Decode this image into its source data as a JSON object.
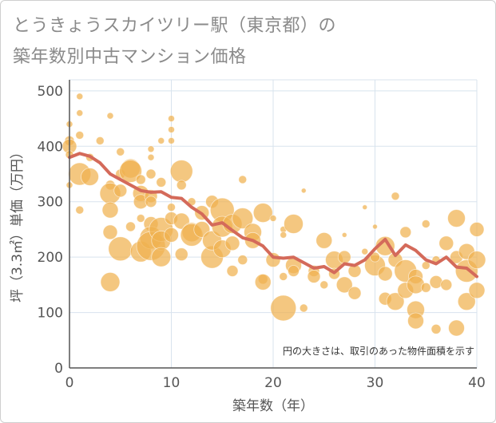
{
  "title_line1": "とうきょうスカイツリー駅（東京都）の",
  "title_line2": "築年数別中古マンション価格",
  "chart_data": {
    "type": "scatter",
    "title": "とうきょうスカイツリー駅（東京都）の 築年数別中古マンション価格",
    "xlabel": "築年数（年）",
    "ylabel": "坪（3.3㎡）単価（万円）",
    "xlim": [
      0,
      40
    ],
    "ylim": [
      0,
      520
    ],
    "xticks": [
      0,
      10,
      20,
      30,
      40
    ],
    "yticks": [
      0,
      100,
      200,
      300,
      400,
      500
    ],
    "grid": true,
    "annotation": "円の大きさは、取引のあった物件面積を示す",
    "colors": {
      "bubble": "#f0b14f",
      "trend": "#d46a5a",
      "grid": "#d8e3ee",
      "axis": "#555555"
    },
    "series": [
      {
        "type": "bubble",
        "points": [
          [
            0,
            410,
            6
          ],
          [
            0,
            400,
            9
          ],
          [
            0,
            385,
            5
          ],
          [
            0,
            330,
            4
          ],
          [
            0,
            440,
            4
          ],
          [
            1,
            490,
            4
          ],
          [
            1,
            460,
            4
          ],
          [
            1,
            350,
            14
          ],
          [
            1,
            285,
            5
          ],
          [
            1,
            420,
            5
          ],
          [
            2,
            345,
            11
          ],
          [
            2,
            380,
            5
          ],
          [
            3,
            410,
            5
          ],
          [
            4,
            455,
            4
          ],
          [
            4,
            330,
            6
          ],
          [
            4,
            315,
            13
          ],
          [
            4,
            285,
            10
          ],
          [
            4,
            245,
            9
          ],
          [
            4,
            155,
            12
          ],
          [
            5,
            390,
            5
          ],
          [
            5,
            350,
            6
          ],
          [
            5,
            320,
            8
          ],
          [
            5,
            215,
            15
          ],
          [
            6,
            360,
            12
          ],
          [
            6,
            355,
            14
          ],
          [
            6,
            255,
            6
          ],
          [
            7,
            340,
            6
          ],
          [
            7,
            315,
            10
          ],
          [
            7,
            300,
            9
          ],
          [
            7,
            210,
            13
          ],
          [
            7,
            270,
            5
          ],
          [
            8,
            395,
            4
          ],
          [
            8,
            380,
            4
          ],
          [
            8,
            350,
            6
          ],
          [
            8,
            310,
            8
          ],
          [
            8,
            300,
            7
          ],
          [
            8,
            260,
            9
          ],
          [
            8,
            235,
            14
          ],
          [
            8,
            220,
            18
          ],
          [
            9,
            410,
            4
          ],
          [
            9,
            335,
            6
          ],
          [
            9,
            250,
            15
          ],
          [
            9,
            230,
            12
          ],
          [
            9,
            200,
            12
          ],
          [
            10,
            450,
            4
          ],
          [
            10,
            430,
            4
          ],
          [
            10,
            410,
            4
          ],
          [
            10,
            290,
            5
          ],
          [
            10,
            270,
            8
          ],
          [
            10,
            240,
            9
          ],
          [
            11,
            355,
            14
          ],
          [
            11,
            330,
            6
          ],
          [
            11,
            265,
            10
          ],
          [
            11,
            205,
            8
          ],
          [
            12,
            245,
            12
          ],
          [
            12,
            240,
            14
          ],
          [
            12,
            300,
            5
          ],
          [
            13,
            280,
            9
          ],
          [
            13,
            250,
            10
          ],
          [
            14,
            200,
            14
          ],
          [
            14,
            230,
            12
          ],
          [
            14,
            300,
            8
          ],
          [
            15,
            285,
            15
          ],
          [
            15,
            255,
            13
          ],
          [
            15,
            215,
            11
          ],
          [
            16,
            260,
            12
          ],
          [
            16,
            175,
            7
          ],
          [
            16,
            225,
            9
          ],
          [
            17,
            340,
            5
          ],
          [
            17,
            270,
            13
          ],
          [
            17,
            195,
            6
          ],
          [
            18,
            245,
            11
          ],
          [
            18,
            230,
            10
          ],
          [
            19,
            280,
            12
          ],
          [
            19,
            160,
            6
          ],
          [
            19,
            155,
            10
          ],
          [
            20,
            270,
            4
          ],
          [
            20,
            195,
            9
          ],
          [
            21,
            250,
            4
          ],
          [
            21,
            240,
            4
          ],
          [
            21,
            165,
            5
          ],
          [
            21,
            108,
            16
          ],
          [
            22,
            260,
            12
          ],
          [
            22,
            185,
            10
          ],
          [
            22,
            175,
            7
          ],
          [
            23,
            320,
            3
          ],
          [
            23,
            108,
            5
          ],
          [
            24,
            175,
            7
          ],
          [
            24,
            165,
            8
          ],
          [
            25,
            230,
            10
          ],
          [
            25,
            150,
            5
          ],
          [
            26,
            195,
            11
          ],
          [
            26,
            170,
            7
          ],
          [
            27,
            240,
            3
          ],
          [
            27,
            200,
            8
          ],
          [
            27,
            150,
            10
          ],
          [
            28,
            175,
            8
          ],
          [
            28,
            135,
            8
          ],
          [
            29,
            290,
            3
          ],
          [
            29,
            210,
            4
          ],
          [
            30,
            185,
            13
          ],
          [
            30,
            255,
            3
          ],
          [
            30,
            200,
            6
          ],
          [
            31,
            220,
            12
          ],
          [
            31,
            170,
            9
          ],
          [
            31,
            125,
            8
          ],
          [
            32,
            310,
            5
          ],
          [
            32,
            195,
            9
          ],
          [
            32,
            120,
            11
          ],
          [
            33,
            245,
            7
          ],
          [
            33,
            175,
            14
          ],
          [
            33,
            140,
            10
          ],
          [
            34,
            165,
            9
          ],
          [
            34,
            150,
            11
          ],
          [
            34,
            105,
            11
          ],
          [
            34,
            85,
            10
          ],
          [
            35,
            260,
            5
          ],
          [
            35,
            185,
            5
          ],
          [
            35,
            145,
            6
          ],
          [
            36,
            155,
            8
          ],
          [
            36,
            70,
            6
          ],
          [
            36,
            195,
            5
          ],
          [
            37,
            225,
            9
          ],
          [
            37,
            150,
            7
          ],
          [
            38,
            270,
            11
          ],
          [
            38,
            200,
            8
          ],
          [
            38,
            72,
            10
          ],
          [
            39,
            210,
            10
          ],
          [
            39,
            175,
            14
          ],
          [
            39,
            120,
            11
          ],
          [
            40,
            250,
            9
          ],
          [
            40,
            195,
            11
          ],
          [
            40,
            140,
            10
          ]
        ]
      },
      {
        "type": "line",
        "points": [
          [
            0,
            380
          ],
          [
            1,
            387
          ],
          [
            2,
            382
          ],
          [
            3,
            370
          ],
          [
            4,
            350
          ],
          [
            5,
            340
          ],
          [
            6,
            330
          ],
          [
            7,
            320
          ],
          [
            8,
            317
          ],
          [
            9,
            318
          ],
          [
            10,
            308
          ],
          [
            11,
            306
          ],
          [
            12,
            290
          ],
          [
            13,
            278
          ],
          [
            14,
            258
          ],
          [
            15,
            262
          ],
          [
            16,
            248
          ],
          [
            17,
            235
          ],
          [
            18,
            230
          ],
          [
            19,
            220
          ],
          [
            20,
            200
          ],
          [
            21,
            198
          ],
          [
            22,
            200
          ],
          [
            23,
            190
          ],
          [
            24,
            180
          ],
          [
            25,
            183
          ],
          [
            26,
            172
          ],
          [
            27,
            188
          ],
          [
            28,
            185
          ],
          [
            29,
            195
          ],
          [
            30,
            215
          ],
          [
            31,
            232
          ],
          [
            32,
            203
          ],
          [
            33,
            222
          ],
          [
            34,
            212
          ],
          [
            35,
            195
          ],
          [
            36,
            188
          ],
          [
            37,
            200
          ],
          [
            38,
            182
          ],
          [
            39,
            180
          ],
          [
            40,
            165
          ]
        ]
      }
    ]
  }
}
